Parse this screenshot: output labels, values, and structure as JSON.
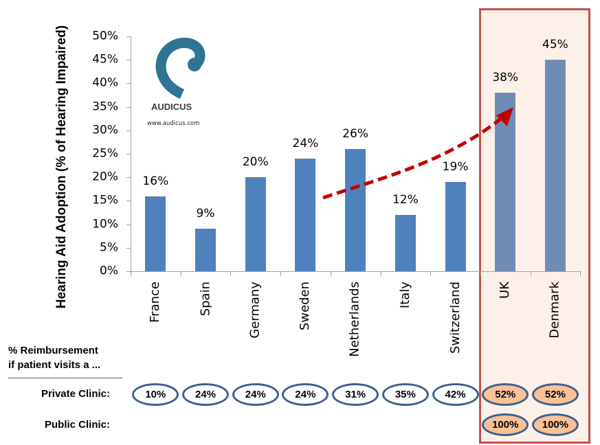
{
  "chart_data": {
    "type": "bar",
    "title": "",
    "ylabel": "Hearing Aid Adoption (% of Hearing Impaired)",
    "xlabel": "",
    "ylim": [
      0,
      50
    ],
    "yticks": [
      "0%",
      "5%",
      "10%",
      "15%",
      "20%",
      "25%",
      "30%",
      "35%",
      "40%",
      "45%",
      "50%"
    ],
    "categories": [
      "France",
      "Spain",
      "Germany",
      "Sweden",
      "Netherlands",
      "Italy",
      "Switzerland",
      "UK",
      "Denmark"
    ],
    "values": [
      16,
      9,
      20,
      24,
      26,
      12,
      19,
      38,
      45
    ],
    "value_labels": [
      "16%",
      "9%",
      "20%",
      "24%",
      "26%",
      "12%",
      "19%",
      "38%",
      "45%"
    ],
    "highlighted_categories": [
      "UK",
      "Denmark"
    ],
    "colors": {
      "bar": "#4f81bd",
      "bar_highlight": "#6f8db4",
      "highlight_border": "#c0504d",
      "highlight_fill": "#fdf0e8",
      "arrow": "#c00000"
    },
    "annotation": "Dashed red curved arrow from Sweden/Netherlands rising to UK",
    "table": {
      "header": "% Reimbursement if patient visits a ...",
      "rows": [
        {
          "label": "Private Clinic:",
          "values": [
            "10%",
            "24%",
            "24%",
            "24%",
            "31%",
            "35%",
            "42%",
            "52%",
            "52%"
          ]
        },
        {
          "label": "Public Clinic:",
          "values": [
            "",
            "",
            "",
            "",
            "",
            "",
            "",
            "100%",
            "100%"
          ]
        }
      ]
    },
    "grid": false,
    "legend": null
  },
  "logo": {
    "name": "AUDICUS",
    "url": "www.audicus.com"
  },
  "table_header": {
    "line1": "% Reimbursement",
    "line2": "if patient visits a ..."
  },
  "rows": {
    "private": "Private Clinic:",
    "public": "Public Clinic:"
  }
}
